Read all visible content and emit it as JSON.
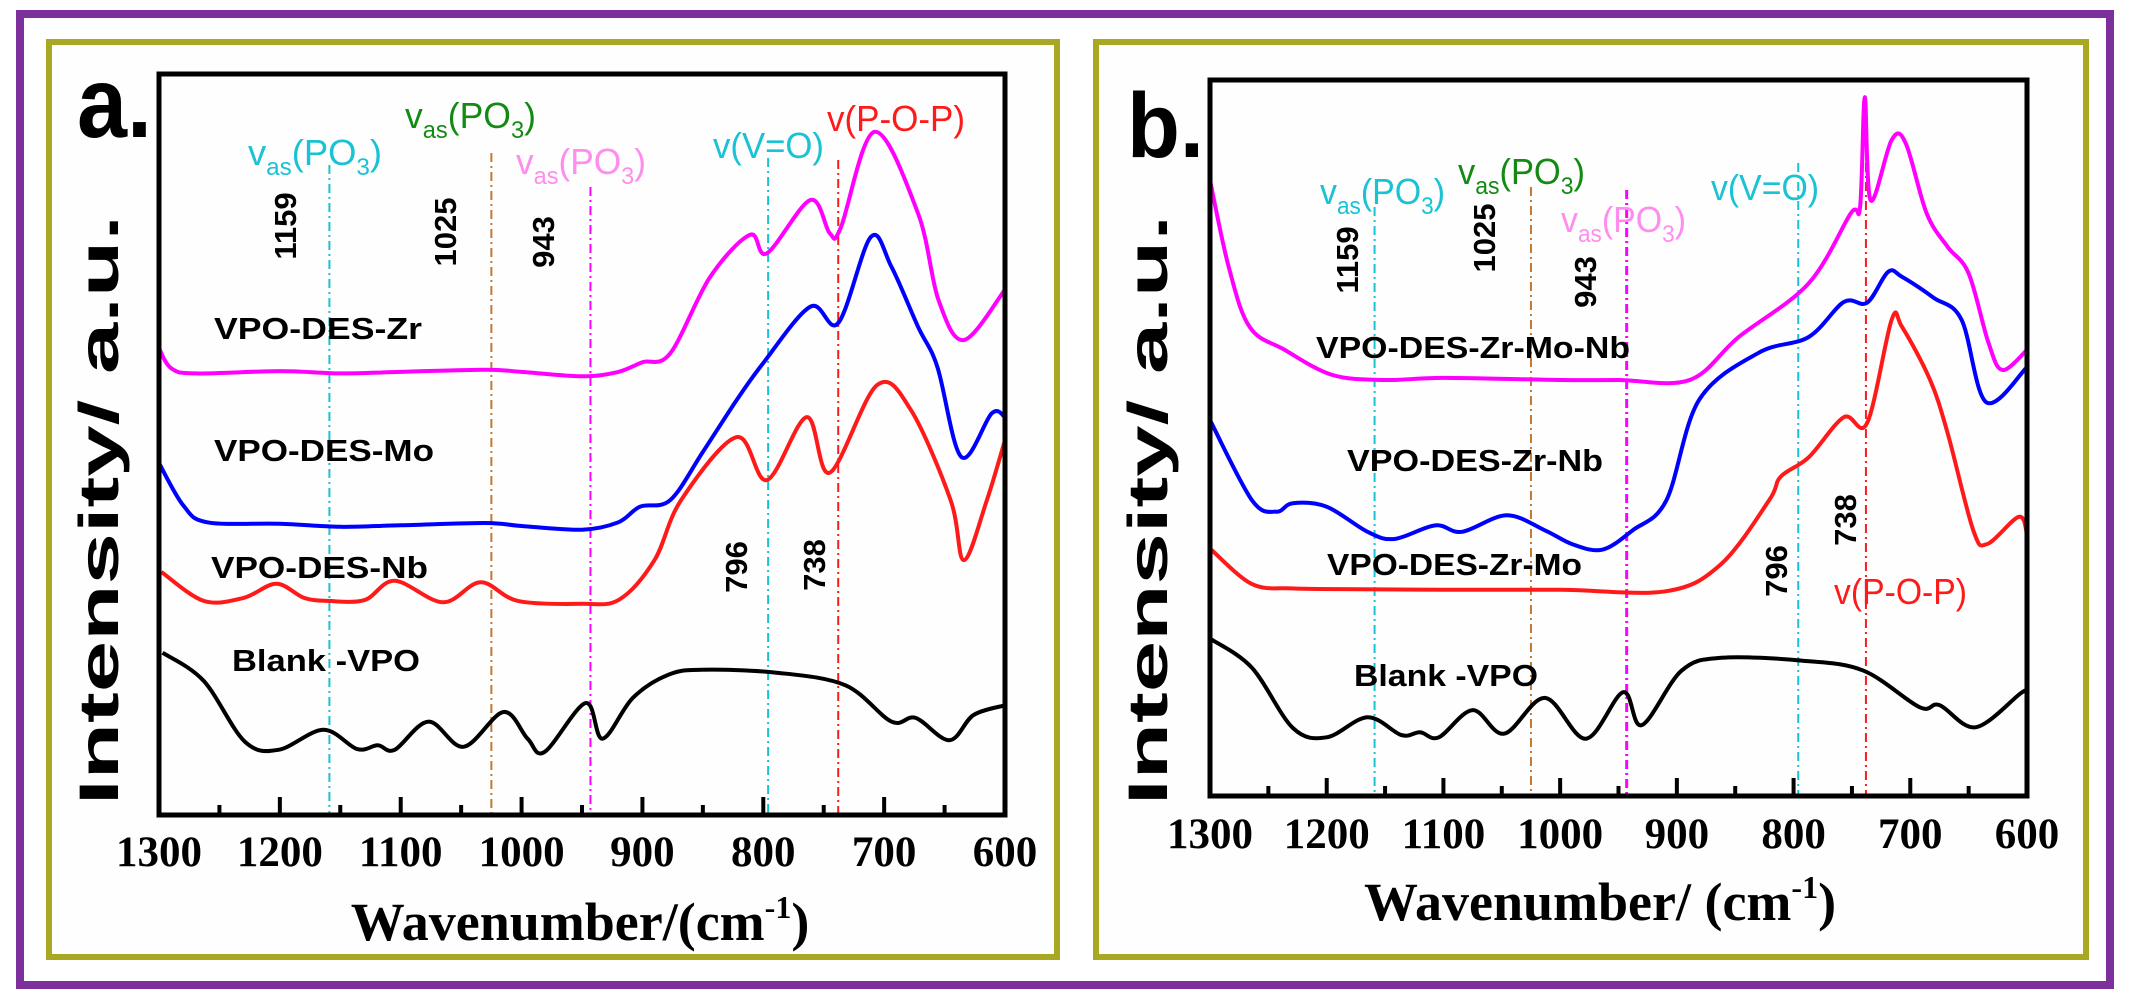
{
  "colors": {
    "outer_frame": "#7d2f9c",
    "panel_frame": "#a9a823",
    "cyan": "#19c2d4",
    "green": "#138a13",
    "pink_label": "#ff8cef",
    "magenta": "#ff00ff",
    "brown": "#c27a2e",
    "red": "#ff1a1a",
    "blue": "#0000ff",
    "black": "#000000"
  },
  "chart_data": [
    {
      "panel_label": "a.",
      "type": "line",
      "xlabel": "Wavenumber/(cm",
      "xlabel_sup": "-1",
      "xlabel_close": ")",
      "ylabel": "Intensity/ a.u.",
      "xlim": [
        1300,
        600
      ],
      "ylim": [
        0,
        100
      ],
      "x_reversed": true,
      "grid": false,
      "xticks": [
        "1300",
        "1200",
        "1100",
        "1000",
        "900",
        "800",
        "700",
        "600"
      ],
      "series": [
        {
          "name": "VPO-DES-Zr",
          "color": "#ff00ff",
          "x": [
            1300,
            1290,
            1270,
            1200,
            1150,
            1100,
            1030,
            1000,
            950,
            920,
            900,
            877,
            844,
            811,
            797,
            761,
            745,
            736,
            708,
            672,
            655,
            634,
            600
          ],
          "y": [
            63.0,
            60.3,
            59.6,
            59.9,
            59.6,
            59.8,
            60.1,
            59.8,
            59.2,
            59.8,
            61.1,
            62.3,
            72.6,
            78.3,
            75.8,
            83.0,
            78.5,
            79.2,
            92.2,
            81.2,
            69.5,
            64.1,
            70.9
          ]
        },
        {
          "name": "VPO-DES-Mo",
          "color": "#0000ff",
          "x": [
            1300,
            1280,
            1260,
            1200,
            1150,
            1100,
            1030,
            1000,
            950,
            920,
            902,
            877,
            850,
            822,
            800,
            761,
            738,
            711,
            694,
            672,
            656,
            636,
            611,
            600
          ],
          "y": [
            47.5,
            41.8,
            39.5,
            39.3,
            38.9,
            39.1,
            39.4,
            39.0,
            38.5,
            39.5,
            41.6,
            42.5,
            49.0,
            56.0,
            61.0,
            68.6,
            66.4,
            78.0,
            74.0,
            65.9,
            60.5,
            48.3,
            54.2,
            53.7
          ]
        },
        {
          "name": "VPO-DES-Nb",
          "color": "#ff1a1a",
          "x": [
            1298,
            1263,
            1230,
            1203,
            1180,
            1160,
            1130,
            1105,
            1065,
            1034,
            1003,
            950,
            919,
            890,
            868,
            822,
            797,
            764,
            745,
            706,
            678,
            645,
            634,
            615,
            600
          ],
          "y": [
            32.8,
            28.9,
            29.3,
            31.2,
            29.3,
            28.9,
            29.0,
            31.6,
            28.7,
            31.4,
            28.9,
            28.5,
            29.1,
            34.4,
            42.5,
            51.0,
            45.2,
            53.7,
            46.2,
            58.0,
            54.7,
            42.5,
            34.4,
            42.5,
            50.6
          ]
        },
        {
          "name": "Blank -VPO",
          "color": "#000000",
          "x": [
            1297,
            1263,
            1229,
            1201,
            1164,
            1136,
            1119,
            1105,
            1077,
            1048,
            1015,
            995,
            981,
            947,
            933,
            908,
            879,
            851,
            789,
            732,
            694,
            674,
            646,
            626,
            600
          ],
          "y": [
            21.9,
            18.1,
            9.9,
            8.8,
            11.5,
            8.9,
            9.4,
            8.8,
            12.6,
            9.2,
            13.9,
            10.3,
            8.5,
            15.1,
            10.3,
            15.8,
            18.9,
            19.6,
            19.2,
            17.5,
            12.6,
            13.1,
            10.1,
            13.5,
            14.8
          ]
        }
      ],
      "reference_lines": [
        {
          "x": 1159,
          "label": "1159",
          "color": "#19c2d4"
        },
        {
          "x": 1025,
          "label": "1025",
          "color": "#c27a2e"
        },
        {
          "x": 943,
          "label": "943",
          "color": "#ff00ff"
        },
        {
          "x": 796,
          "label": "796",
          "color": "#19c2d4"
        },
        {
          "x": 738,
          "label": "738",
          "color": "#ff1a1a"
        }
      ],
      "annotations": [
        {
          "color": "#19c2d4",
          "parts": [
            {
              "t": "v",
              "sub": false
            },
            {
              "t": "as",
              "sub": true
            },
            {
              "t": "(PO",
              "sub": false
            },
            {
              "t": "3",
              "sub": true
            },
            {
              "t": ")",
              "sub": false
            }
          ]
        },
        {
          "color": "#138a13",
          "parts": [
            {
              "t": "v",
              "sub": false
            },
            {
              "t": "as",
              "sub": true
            },
            {
              "t": "(PO",
              "sub": false
            },
            {
              "t": "3",
              "sub": true
            },
            {
              "t": ")",
              "sub": false
            }
          ]
        },
        {
          "color": "#ff8cef",
          "parts": [
            {
              "t": "v",
              "sub": false
            },
            {
              "t": "as",
              "sub": true
            },
            {
              "t": "(PO",
              "sub": false
            },
            {
              "t": "3",
              "sub": true
            },
            {
              "t": ")",
              "sub": false
            }
          ]
        },
        {
          "color": "#19c2d4",
          "parts": [
            {
              "t": "v(V=O)",
              "sub": false
            }
          ]
        },
        {
          "color": "#ff1a1a",
          "parts": [
            {
              "t": "v(P-O-P)",
              "sub": false
            }
          ]
        }
      ]
    },
    {
      "panel_label": "b.",
      "type": "line",
      "xlabel": "Wavenumber/ (cm",
      "xlabel_sup": "-1",
      "xlabel_close": ")",
      "ylabel": "Intensity/ a.u.",
      "xlim": [
        1300,
        600
      ],
      "ylim": [
        0,
        100
      ],
      "x_reversed": true,
      "grid": false,
      "xticks": [
        "1300",
        "1200",
        "1100",
        "1000",
        "900",
        "800",
        "700",
        "600"
      ],
      "series": [
        {
          "name": "VPO-DES-Zr-Mo-Nb",
          "color": "#ff00ff",
          "x": [
            1300,
            1284,
            1266,
            1236,
            1195,
            1150,
            1100,
            1000,
            950,
            889,
            847,
            787,
            751,
            743,
            739,
            734,
            716,
            704,
            686,
            668,
            650,
            633,
            621,
            600
          ],
          "y": [
            86.0,
            73.9,
            65.5,
            62.3,
            58.8,
            58.1,
            58.4,
            58.1,
            58.1,
            58.1,
            64.1,
            71.6,
            81.4,
            82.3,
            97.6,
            83.2,
            91.6,
            91.2,
            81.4,
            76.7,
            73.0,
            63.3,
            59.5,
            62.3
          ]
        },
        {
          "name": "VPO-DES-Zr-Nb",
          "color": "#0000ff",
          "x": [
            1300,
            1264,
            1243,
            1229,
            1200,
            1165,
            1142,
            1107,
            1084,
            1046,
            1013,
            990,
            964,
            938,
            909,
            881,
            830,
            787,
            757,
            737,
            719,
            707,
            680,
            656,
            635,
            600
          ],
          "y": [
            52.5,
            41.3,
            39.7,
            40.9,
            40.4,
            36.9,
            35.9,
            37.8,
            36.9,
            39.2,
            37.1,
            35.2,
            34.4,
            37.1,
            41.3,
            55.3,
            61.9,
            64.1,
            69.0,
            68.9,
            73.2,
            72.5,
            69.6,
            66.5,
            55.0,
            59.9
          ]
        },
        {
          "name": "VPO-DES-Zr-Mo",
          "color": "#ff1a1a",
          "x": [
            1299,
            1264,
            1230,
            1189,
            1100,
            1000,
            909,
            862,
            821,
            811,
            787,
            757,
            737,
            716,
            707,
            683,
            668,
            646,
            634,
            607,
            600
          ],
          "y": [
            34.4,
            29.6,
            29.0,
            28.9,
            28.8,
            28.8,
            28.6,
            32.4,
            41.3,
            44.6,
            47.3,
            52.9,
            52.1,
            66.5,
            65.5,
            58.1,
            50.7,
            37.1,
            35.2,
            39.0,
            36.6
          ]
        },
        {
          "name": "Blank -VPO",
          "color": "#000000",
          "x": [
            1299,
            1264,
            1229,
            1200,
            1165,
            1136,
            1120,
            1104,
            1075,
            1048,
            1013,
            978,
            946,
            930,
            896,
            862,
            792,
            740,
            692,
            675,
            644,
            605,
            600
          ],
          "y": [
            21.9,
            17.9,
            9.5,
            8.2,
            11.0,
            8.5,
            8.9,
            8.2,
            12.0,
            8.7,
            13.7,
            8.0,
            14.5,
            9.9,
            17.5,
            19.3,
            18.9,
            17.5,
            12.4,
            12.7,
            9.6,
            14.4,
            14.5
          ]
        }
      ],
      "reference_lines": [
        {
          "x": 1159,
          "label": "1159",
          "color": "#19c2d4"
        },
        {
          "x": 1025,
          "label": "1025",
          "color": "#c27a2e"
        },
        {
          "x": 943,
          "label": "943",
          "color": "#ff00ff"
        },
        {
          "x": 796,
          "label": "796",
          "color": "#19c2d4"
        },
        {
          "x": 738,
          "label": "738",
          "color": "#ff1a1a"
        }
      ],
      "annotations": [
        {
          "color": "#19c2d4",
          "parts": [
            {
              "t": "v",
              "sub": false
            },
            {
              "t": "as",
              "sub": true
            },
            {
              "t": "(PO",
              "sub": false
            },
            {
              "t": "3",
              "sub": true
            },
            {
              "t": ")",
              "sub": false
            }
          ]
        },
        {
          "color": "#138a13",
          "parts": [
            {
              "t": "v",
              "sub": false
            },
            {
              "t": "as",
              "sub": true
            },
            {
              "t": "(PO",
              "sub": false
            },
            {
              "t": "3",
              "sub": true
            },
            {
              "t": ")",
              "sub": false
            }
          ]
        },
        {
          "color": "#ff8cef",
          "parts": [
            {
              "t": "v",
              "sub": false
            },
            {
              "t": "as",
              "sub": true
            },
            {
              "t": "(PO",
              "sub": false
            },
            {
              "t": "3",
              "sub": true
            },
            {
              "t": ")",
              "sub": false
            }
          ]
        },
        {
          "color": "#19c2d4",
          "parts": [
            {
              "t": "v(V=O)",
              "sub": false
            }
          ]
        },
        {
          "color": "#ff1a1a",
          "parts": [
            {
              "t": "v(P-O-P)",
              "sub": false
            }
          ]
        }
      ]
    }
  ]
}
